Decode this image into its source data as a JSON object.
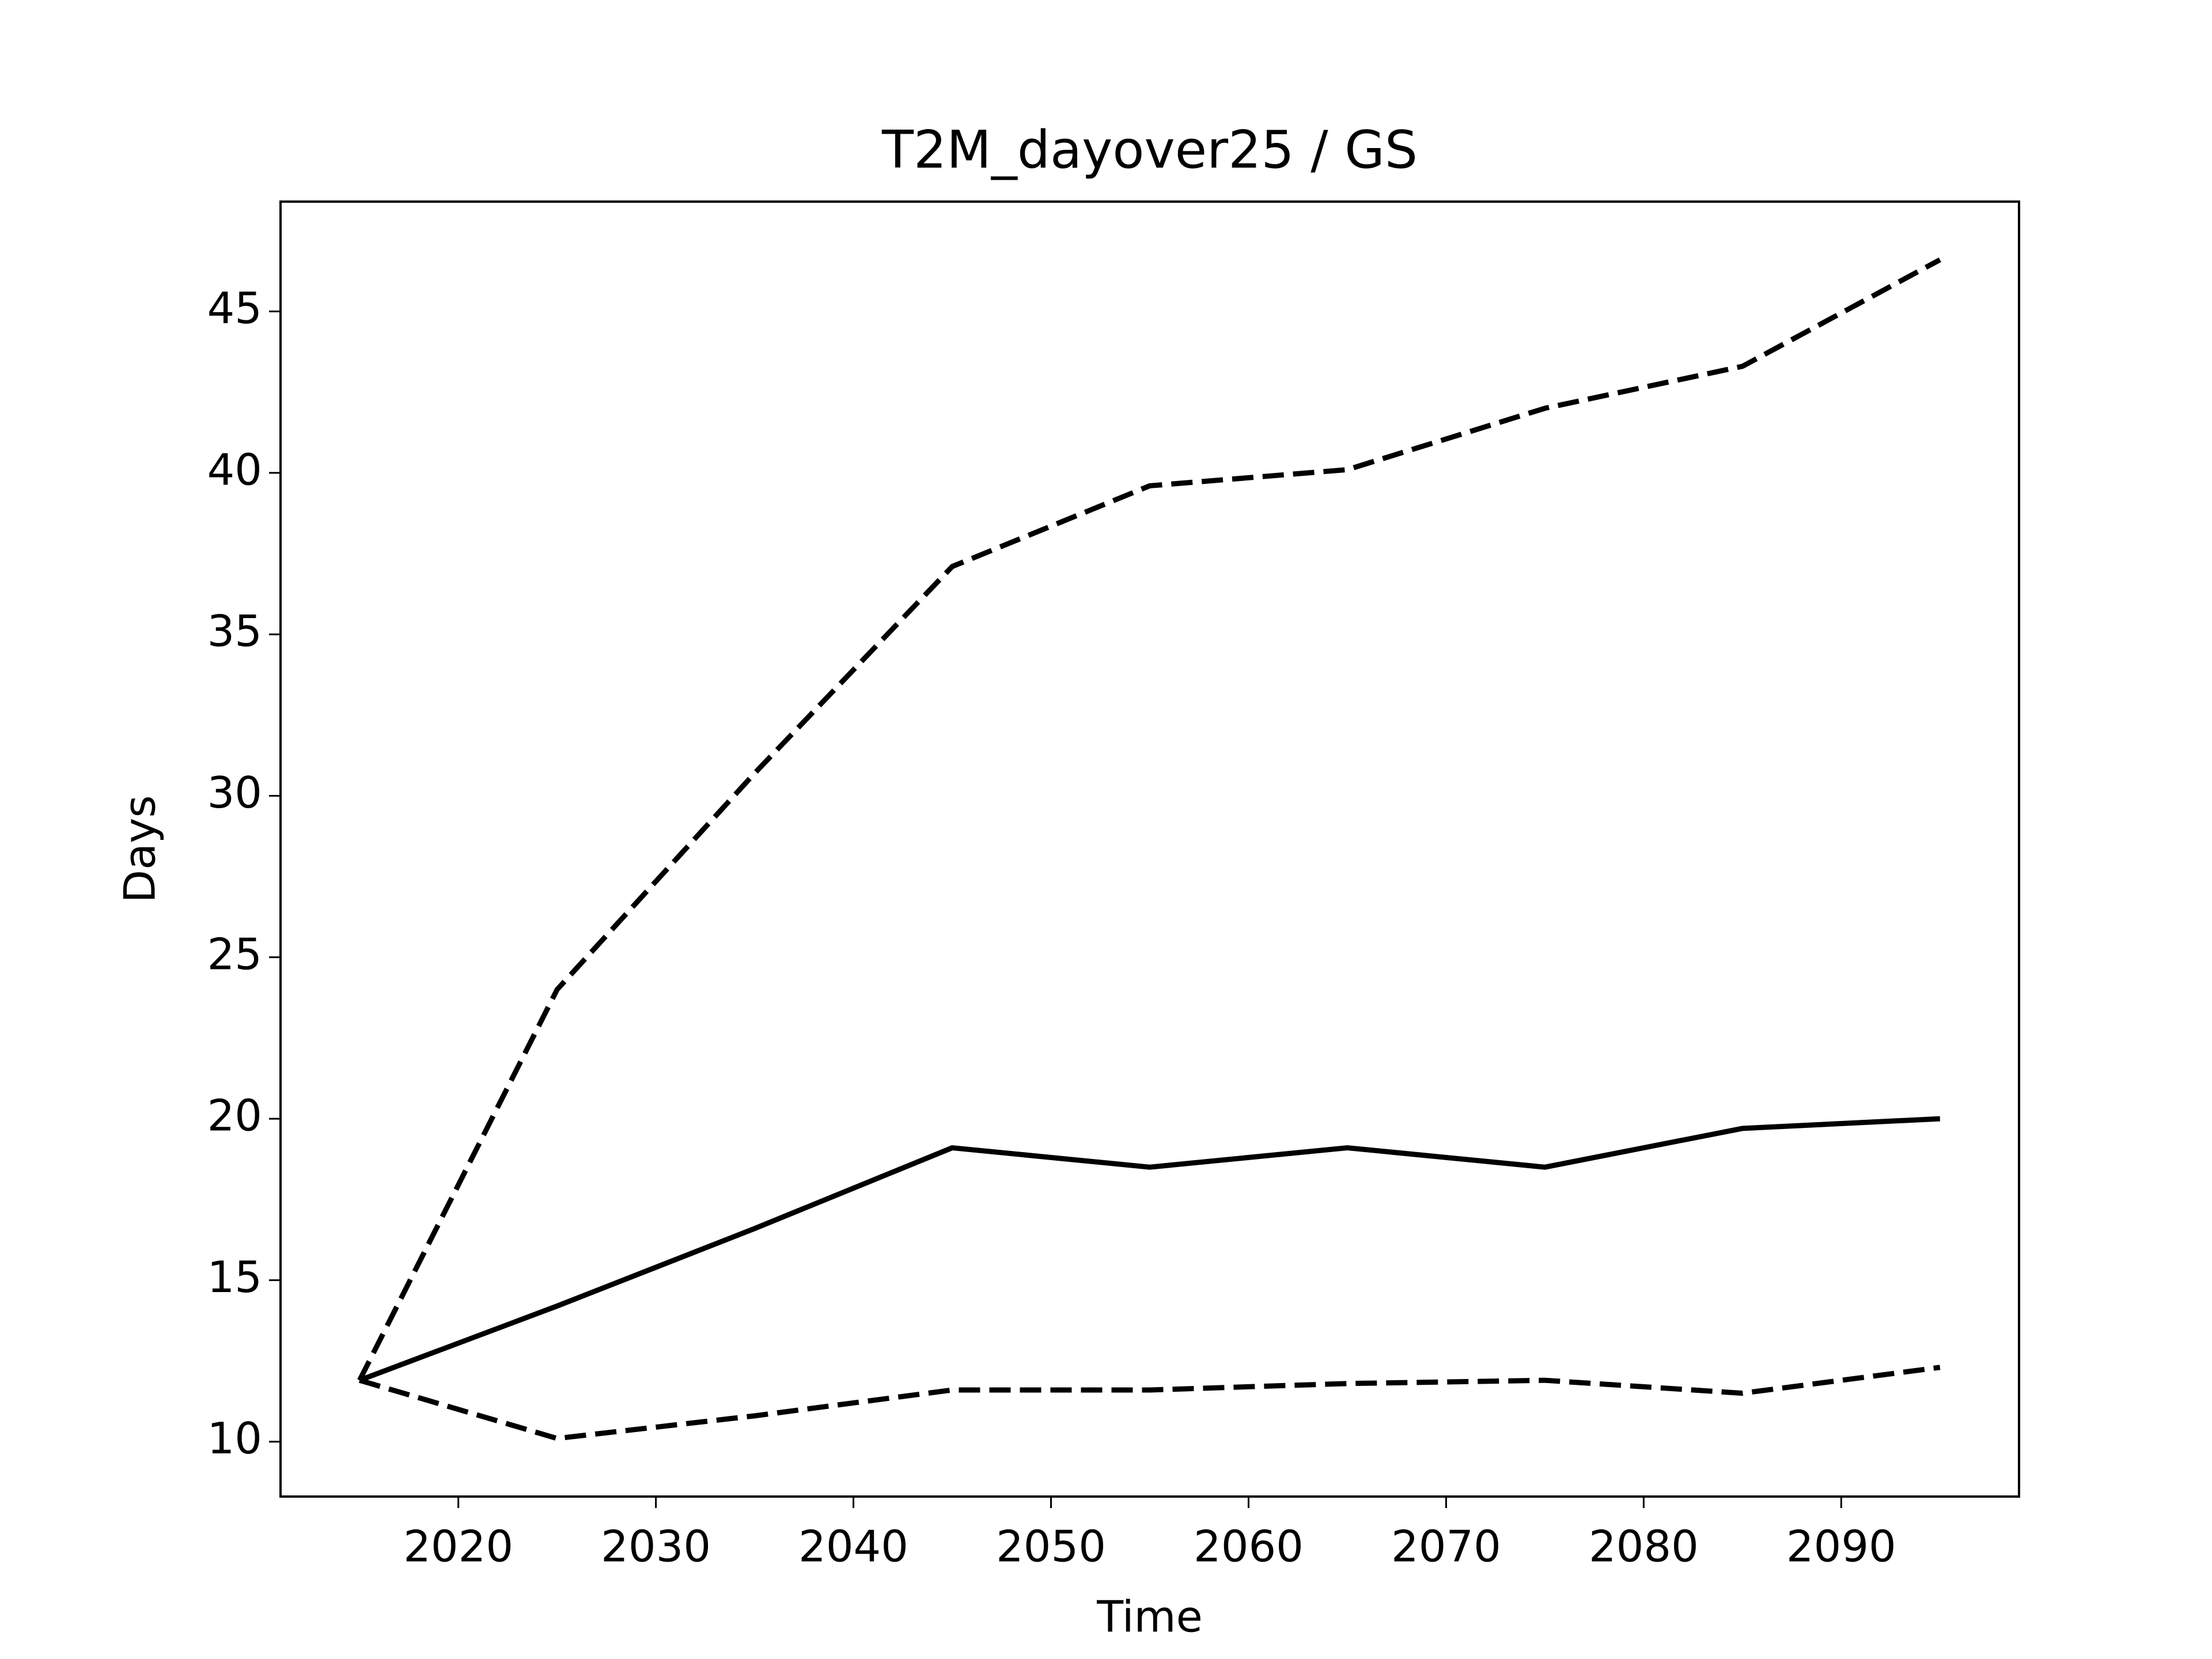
{
  "chart_data": {
    "type": "line",
    "title": "T2M_dayover25 / GS",
    "x_label": "Time",
    "y_label": "Days",
    "x": [
      2015,
      2025,
      2035,
      2045,
      2055,
      2065,
      2075,
      2085,
      2095
    ],
    "series": [
      {
        "color": "#000000",
        "dashed": false,
        "values": [
          11.9,
          14.2,
          16.6,
          19.1,
          18.5,
          19.1,
          18.5,
          19.7,
          20.0
        ]
      },
      {
        "color": "#000000",
        "dashed": true,
        "values": [
          11.9,
          24.0,
          30.7,
          37.1,
          39.6,
          40.1,
          42.0,
          43.3,
          46.6
        ]
      },
      {
        "color": "#000000",
        "dashed": true,
        "values": [
          11.9,
          10.1,
          10.8,
          11.6,
          11.6,
          11.8,
          11.9,
          11.5,
          12.3
        ]
      }
    ],
    "xlim": [
      2011,
      2099
    ],
    "ylim": [
      8.3,
      48.4
    ],
    "xticks": [
      2020,
      2030,
      2040,
      2050,
      2060,
      2070,
      2080,
      2090
    ],
    "yticks": [
      10,
      15,
      20,
      25,
      30,
      35,
      40,
      45
    ],
    "grid": false
  }
}
